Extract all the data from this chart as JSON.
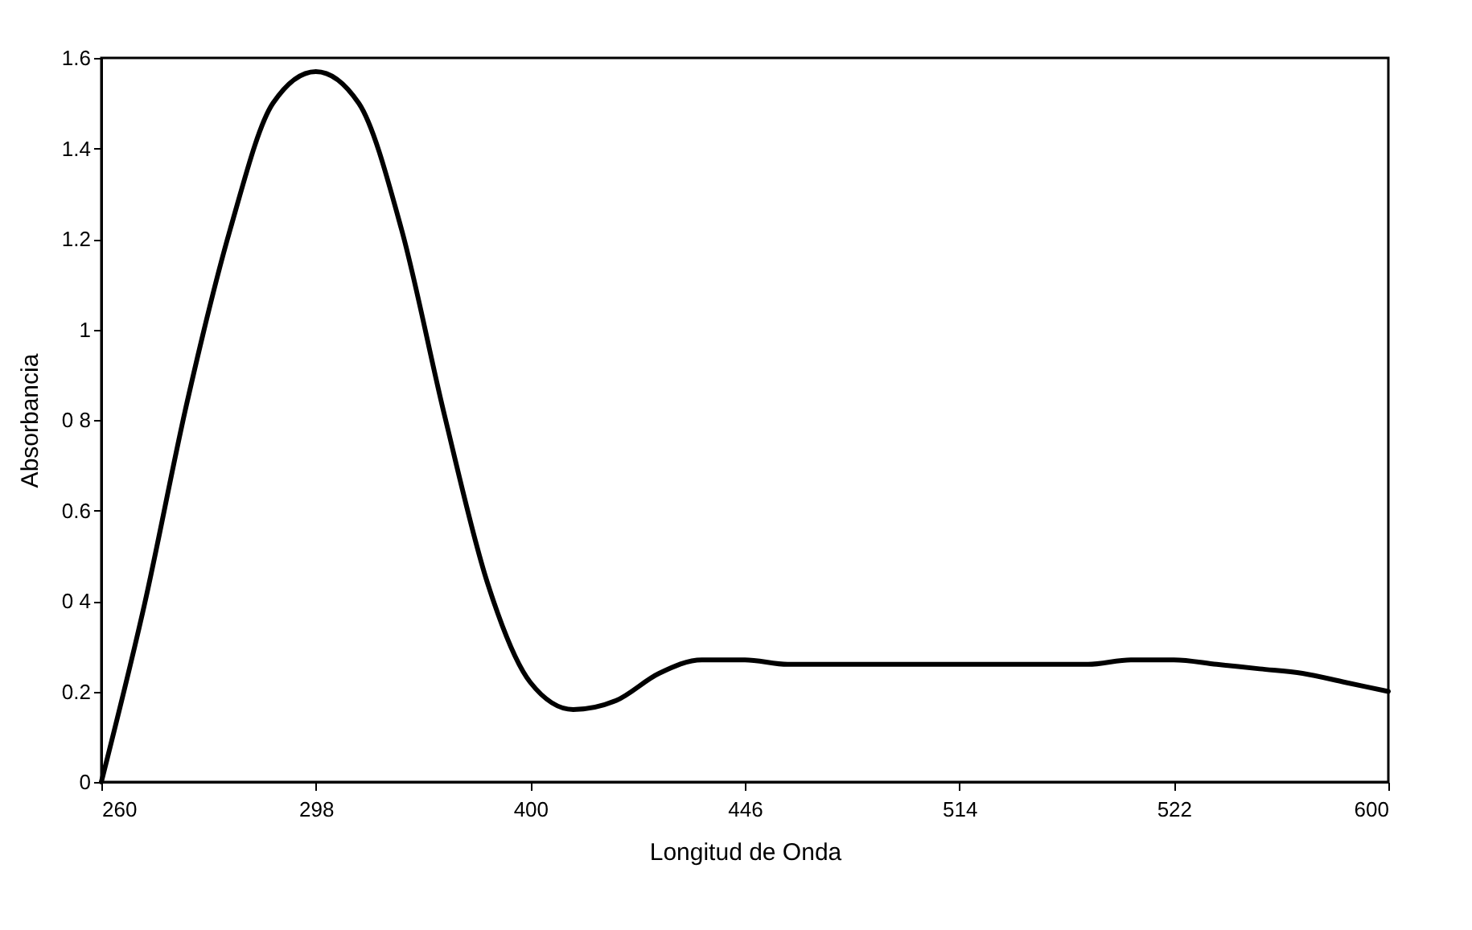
{
  "chart_data": {
    "type": "line",
    "xlabel": "Longitud de Onda",
    "ylabel": "Absorbancia",
    "categories": [
      "260",
      null,
      null,
      null,
      null,
      "298",
      null,
      null,
      null,
      null,
      "400",
      null,
      null,
      null,
      null,
      "446",
      null,
      null,
      null,
      null,
      "514",
      null,
      null,
      null,
      null,
      "522",
      null,
      null,
      null,
      null,
      "600"
    ],
    "series": [
      {
        "color": "#000000",
        "values": [
          0,
          0.39,
          0.84,
          1.22,
          1.5,
          1.57,
          1.5,
          1.22,
          0.81,
          0.44,
          0.22,
          0.16,
          0.18,
          0.24,
          0.27,
          0.27,
          0.26,
          0.26,
          0.26,
          0.26,
          0.26,
          0.26,
          0.26,
          0.26,
          0.27,
          0.27,
          0.26,
          0.25,
          0.24,
          0.22,
          0.2
        ]
      }
    ],
    "ylim": [
      0,
      1.6
    ],
    "yticks": [
      0,
      0.2,
      {
        "value": 0.4,
        "label": "0 4"
      },
      0.6,
      {
        "value": 0.8,
        "label": "0 8"
      },
      1,
      1.2,
      1.4,
      1.6
    ],
    "grid": false,
    "marker": "none",
    "line_style": "solid"
  }
}
